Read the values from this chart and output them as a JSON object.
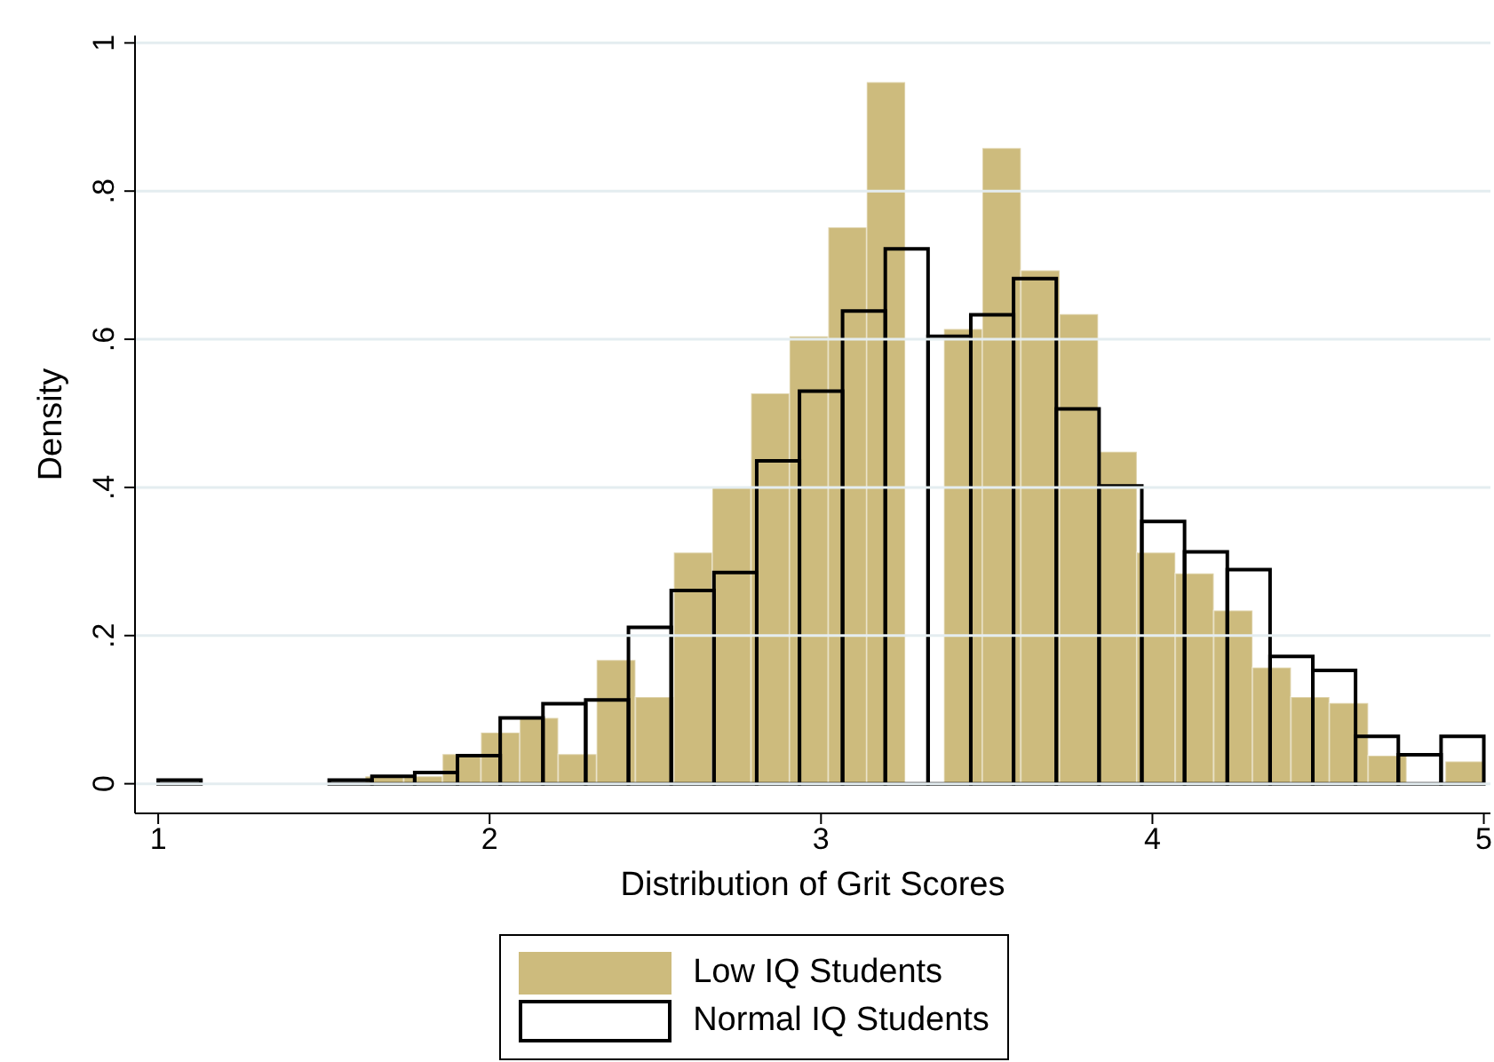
{
  "chart_data": {
    "type": "histogram",
    "xlabel": "Distribution of Grit Scores",
    "ylabel": "Density",
    "bins": [
      1.625,
      1.741,
      1.858,
      1.974,
      2.091,
      2.207,
      2.323,
      2.44,
      2.556,
      2.672,
      2.789,
      2.905,
      3.022,
      3.138,
      3.254,
      3.371,
      3.487,
      3.603,
      3.72,
      3.836,
      3.953,
      4.069,
      4.185,
      4.302,
      4.418,
      4.534,
      4.651,
      4.767,
      4.884,
      5.0
    ],
    "series": [
      {
        "name": "Low IQ Students",
        "color": "#cdbb7d",
        "values": [
          0.01,
          0.01,
          0.04,
          0.069,
          0.089,
          0.04,
          0.167,
          0.117,
          0.312,
          0.4,
          0.527,
          0.604,
          0.751,
          0.947,
          0,
          0.614,
          0.858,
          0.693,
          0.634,
          0.448,
          0.312,
          0.284,
          0.234,
          0.157,
          0.117,
          0.109,
          0.038,
          0,
          0.03
        ]
      },
      {
        "name": "Normal IQ Students",
        "color": "#000000",
        "bins": [
          1.0,
          1.129,
          1.258,
          1.387,
          1.516,
          1.645,
          1.774,
          1.903,
          2.032,
          2.161,
          2.29,
          2.419,
          2.548,
          2.677,
          2.806,
          2.935,
          3.065,
          3.194,
          3.323,
          3.452,
          3.581,
          3.71,
          3.839,
          3.968,
          4.097,
          4.226,
          4.355,
          4.484,
          4.613,
          4.742,
          4.871,
          5.0
        ],
        "values": [
          0.005,
          0,
          0,
          0,
          0.005,
          0.01,
          0.015,
          0.038,
          0.089,
          0.108,
          0.113,
          0.211,
          0.261,
          0.285,
          0.436,
          0.53,
          0.638,
          0.722,
          0.604,
          0.633,
          0.682,
          0.506,
          0.402,
          0.354,
          0.313,
          0.289,
          0.172,
          0.153,
          0.064,
          0.039,
          0.064
        ]
      }
    ],
    "xlim": [
      0.93,
      5.02
    ],
    "xticks": [
      1,
      2,
      3,
      4,
      5
    ],
    "ylim": [
      -0.04,
      1.01
    ],
    "yticks": [
      {
        "value": 0,
        "label": "0"
      },
      {
        "value": 0.2,
        "label": ".2"
      },
      {
        "value": 0.4,
        "label": ".4"
      },
      {
        "value": 0.6,
        "label": ".6"
      },
      {
        "value": 0.8,
        "label": ".8"
      },
      {
        "value": 1,
        "label": "1"
      }
    ],
    "grid": "y",
    "legend": "bottom"
  }
}
